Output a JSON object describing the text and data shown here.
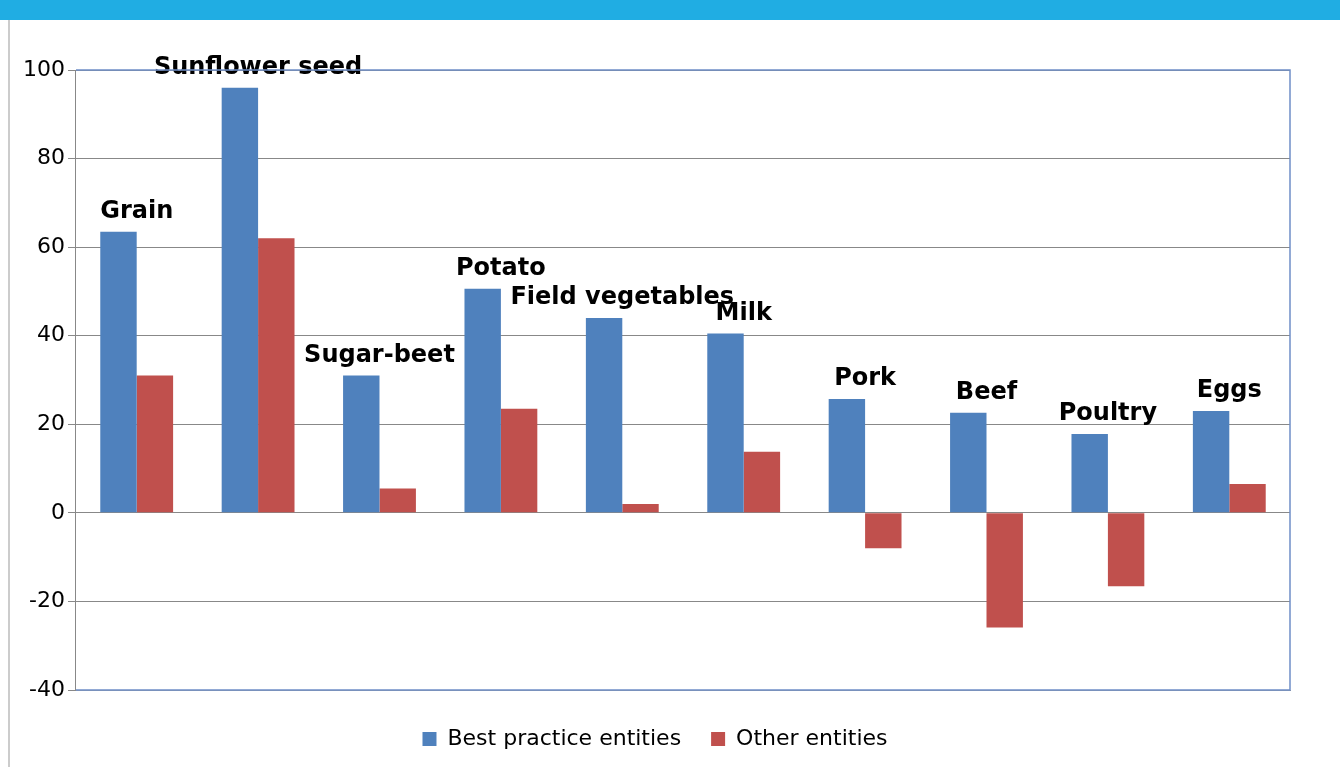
{
  "chart_data": {
    "type": "bar",
    "categories": [
      "Grain",
      "Sunflower seed",
      "Sugar-beet",
      "Potato",
      "Field vegetables",
      "Milk",
      "Pork",
      "Beef",
      "Poultry",
      "Eggs"
    ],
    "series": [
      {
        "name": "Best practice entities",
        "color": "#4f81bd",
        "values": [
          63.5,
          96,
          31,
          50.6,
          44,
          40.5,
          25.7,
          22.6,
          17.8,
          23
        ]
      },
      {
        "name": "Other entities",
        "color": "#c0504d",
        "values": [
          31,
          62,
          5.5,
          23.5,
          2,
          13.8,
          -8,
          -25.9,
          -16.6,
          6.5
        ]
      }
    ],
    "ylim": [
      -40,
      100
    ],
    "yticks": [
      -40,
      -20,
      0,
      20,
      40,
      60,
      80,
      100
    ],
    "grid": "y",
    "legend": "bottom"
  }
}
